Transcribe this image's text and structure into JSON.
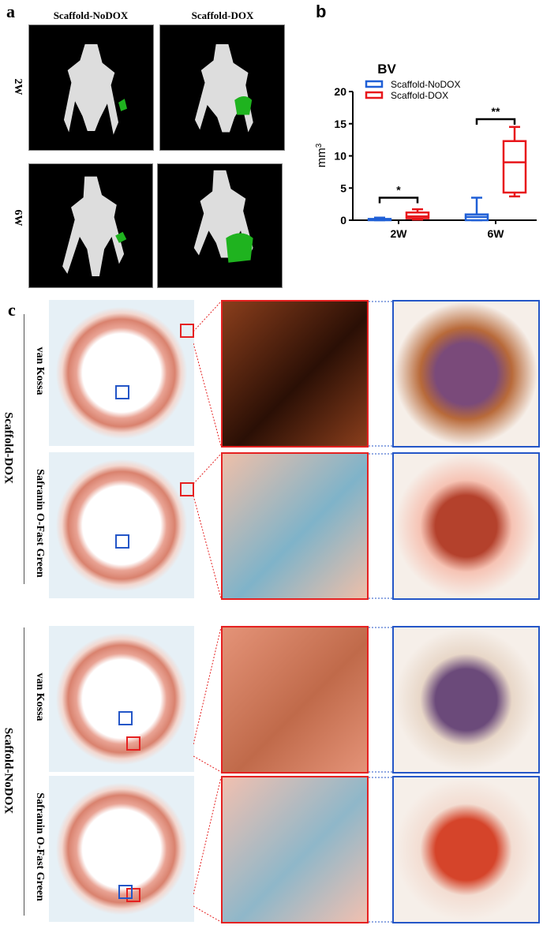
{
  "panels": {
    "a": {
      "label": "a",
      "columns": [
        "Scaffold-NoDOX",
        "Scaffold-DOX"
      ],
      "rows": [
        "2W",
        "6W"
      ]
    },
    "b": {
      "label": "b"
    },
    "c": {
      "label": "c",
      "groups": [
        {
          "name": "Scaffold-DOX",
          "stains": [
            "van Kossa",
            "Safranin O-Fast Green"
          ]
        },
        {
          "name": "Scaffold-NoDOX",
          "stains": [
            "van Kossa",
            "Safranin O-Fast Green"
          ]
        }
      ]
    }
  },
  "colors": {
    "nodox": "#1f5fd6",
    "dox": "#e8161b",
    "bone_green": "#1fb31f"
  },
  "chart_data": {
    "type": "box",
    "title": "BV",
    "ylabel": "mm3",
    "ylim": [
      0,
      20
    ],
    "yticks": [
      0,
      5,
      10,
      15,
      20
    ],
    "categories": [
      "2W",
      "6W"
    ],
    "legend_position": "top-left",
    "series": [
      {
        "name": "Scaffold-NoDOX",
        "color": "#1f5fd6",
        "boxes": [
          {
            "min": 0,
            "q1": 0,
            "median": 0.1,
            "q3": 0.2,
            "max": 0.4
          },
          {
            "min": 0,
            "q1": 0,
            "median": 0.5,
            "q3": 0.9,
            "max": 3.5
          }
        ]
      },
      {
        "name": "Scaffold-DOX",
        "color": "#e8161b",
        "boxes": [
          {
            "min": 0.1,
            "q1": 0.3,
            "median": 0.6,
            "q3": 1.2,
            "max": 1.7
          },
          {
            "min": 3.7,
            "q1": 4.3,
            "median": 9.0,
            "q3": 12.3,
            "max": 14.5
          }
        ]
      }
    ],
    "annotations": [
      {
        "category": "2W",
        "text": "*",
        "y": 3.5
      },
      {
        "category": "6W",
        "text": "**",
        "y": 15.7
      }
    ]
  }
}
